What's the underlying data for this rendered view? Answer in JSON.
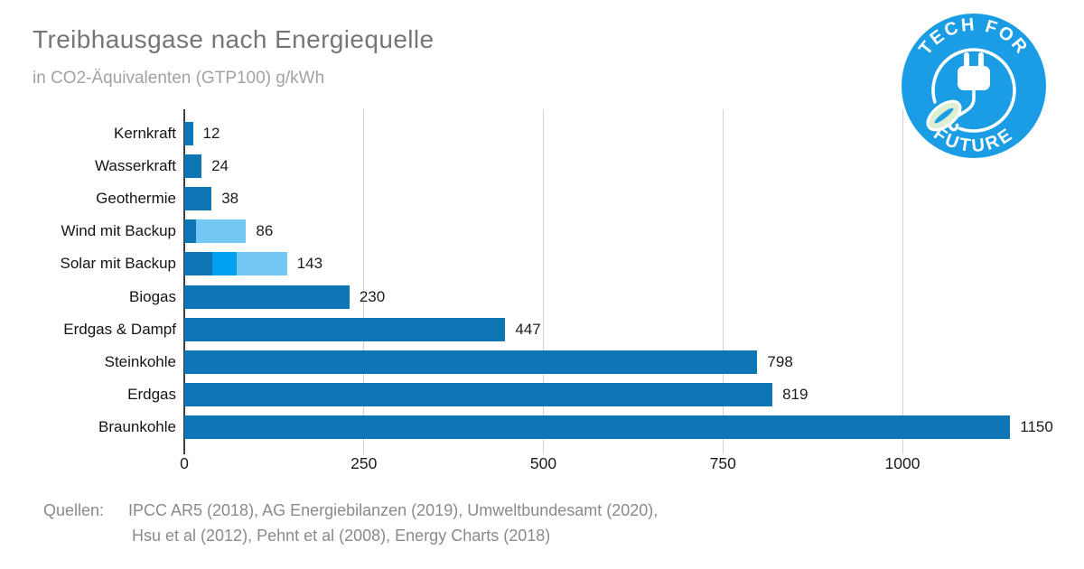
{
  "header": {
    "title": "Treibhausgase nach Energiequelle",
    "subtitle": "in CO2-Äquivalenten (GTP100) g/kWh"
  },
  "logo": {
    "top_text": "TECH FOR",
    "bottom_text": "FUTURE",
    "bg_color": "#1a9de4"
  },
  "chart_data": {
    "type": "bar",
    "orientation": "horizontal",
    "title": "Treibhausgase nach Energiequelle",
    "subtitle": "in CO2-Äquivalenten (GTP100) g/kWh",
    "value_unit": "g CO2-Äq/kWh",
    "grid": true,
    "xticks": [
      0,
      250,
      500,
      750,
      1000
    ],
    "xlim": [
      0,
      1234
    ],
    "categories": [
      "Kernkraft",
      "Wasserkraft",
      "Geothermie",
      "Wind mit Backup",
      "Solar mit Backup",
      "Biogas",
      "Erdgas & Dampf",
      "Steinkohle",
      "Erdgas",
      "Braunkohle"
    ],
    "values": [
      12,
      24,
      38,
      86,
      143,
      230,
      447,
      798,
      819,
      1150
    ],
    "colors": {
      "primary": "#0e76b4",
      "secondary": "#00a1f1",
      "tertiary": "#72c7f4"
    },
    "bars": [
      {
        "label": "Kernkraft",
        "total": 12,
        "segments": [
          {
            "value": 12,
            "color": "#0e76b4"
          }
        ]
      },
      {
        "label": "Wasserkraft",
        "total": 24,
        "segments": [
          {
            "value": 24,
            "color": "#0e76b4"
          }
        ]
      },
      {
        "label": "Geothermie",
        "total": 38,
        "segments": [
          {
            "value": 38,
            "color": "#0e76b4"
          }
        ]
      },
      {
        "label": "Wind mit Backup",
        "total": 86,
        "segments": [
          {
            "value": 16,
            "color": "#0e76b4"
          },
          {
            "value": 70,
            "color": "#72c7f4"
          }
        ]
      },
      {
        "label": "Solar mit Backup",
        "total": 143,
        "segments": [
          {
            "value": 39,
            "color": "#0e76b4"
          },
          {
            "value": 34,
            "color": "#00a1f1"
          },
          {
            "value": 70,
            "color": "#72c7f4"
          }
        ]
      },
      {
        "label": "Biogas",
        "total": 230,
        "segments": [
          {
            "value": 230,
            "color": "#0e76b4"
          }
        ]
      },
      {
        "label": "Erdgas & Dampf",
        "total": 447,
        "segments": [
          {
            "value": 447,
            "color": "#0e76b4"
          }
        ]
      },
      {
        "label": "Steinkohle",
        "total": 798,
        "segments": [
          {
            "value": 798,
            "color": "#0e76b4"
          }
        ]
      },
      {
        "label": "Erdgas",
        "total": 819,
        "segments": [
          {
            "value": 819,
            "color": "#0e76b4"
          }
        ]
      },
      {
        "label": "Braunkohle",
        "total": 1150,
        "segments": [
          {
            "value": 1150,
            "color": "#0e76b4"
          }
        ]
      }
    ]
  },
  "footer": {
    "label": "Quellen:",
    "line1": "IPCC AR5 (2018), AG Energiebilanzen (2019), Umweltbundesamt (2020),",
    "line2": "Hsu et al (2012), Pehnt et al (2008),  Energy Charts (2018)"
  }
}
